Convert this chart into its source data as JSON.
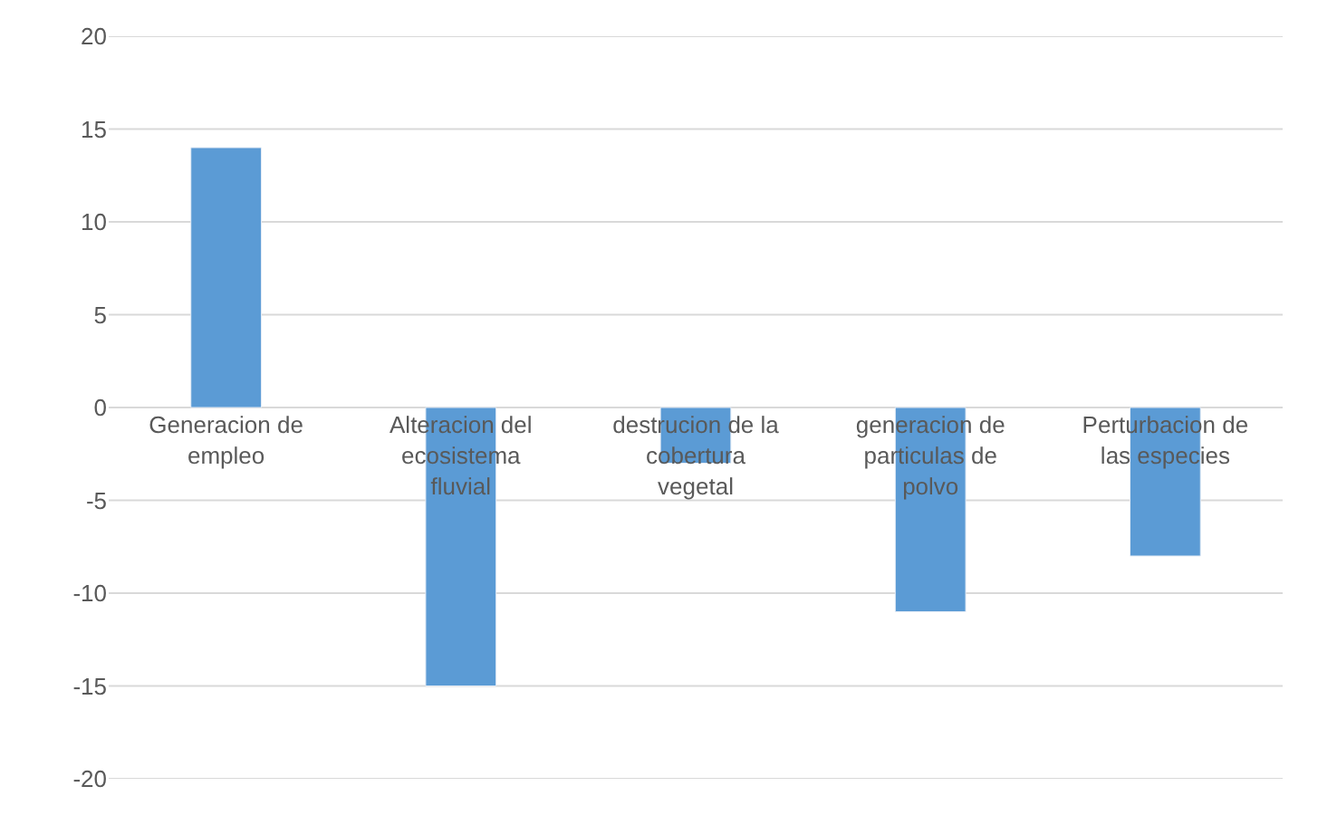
{
  "chart_data": {
    "type": "bar",
    "categories": [
      "Generacion de empleo",
      "Alteracion del ecosistema fluvial",
      "destrucion de la cobertura vegetal",
      "generacion de particulas de polvo",
      "Perturbacion de las especies"
    ],
    "values": [
      14,
      -15,
      -3,
      -11,
      -8
    ],
    "color": "#5b9bd5",
    "ylim": [
      -20,
      20
    ],
    "yticks": [
      -20,
      -15,
      -10,
      -5,
      0,
      5,
      10,
      15,
      20
    ],
    "grid": "y"
  }
}
